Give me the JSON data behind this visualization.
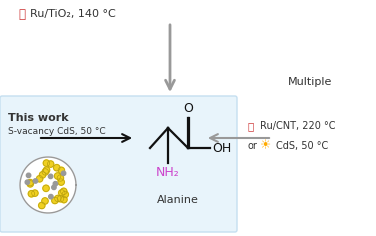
{
  "bg_color": "#ffffff",
  "box_color": "#e8f4fb",
  "box_border_color": "#c5dff0",
  "top_label": "Ru/TiO₂, 140 °C",
  "this_work_line1": "This work",
  "this_work_line2": "S-vacancy CdS, 50 °C",
  "alanine_label": "Alanine",
  "right_line1": "Ru/CNT, 220 °C",
  "right_line2": "or",
  "right_line3": "CdS, 50 °C",
  "multiple_label": "Multiple",
  "nh2_color": "#cc44cc",
  "arrow_color_gray": "#999999",
  "arrow_color_black": "#111111",
  "text_color": "#333333",
  "thermo_color": "#cc3333",
  "sun_color": "#ffaa00",
  "particle_yellow": "#f0d020",
  "particle_yellow_edge": "#b8a010",
  "particle_gray": "#999999"
}
